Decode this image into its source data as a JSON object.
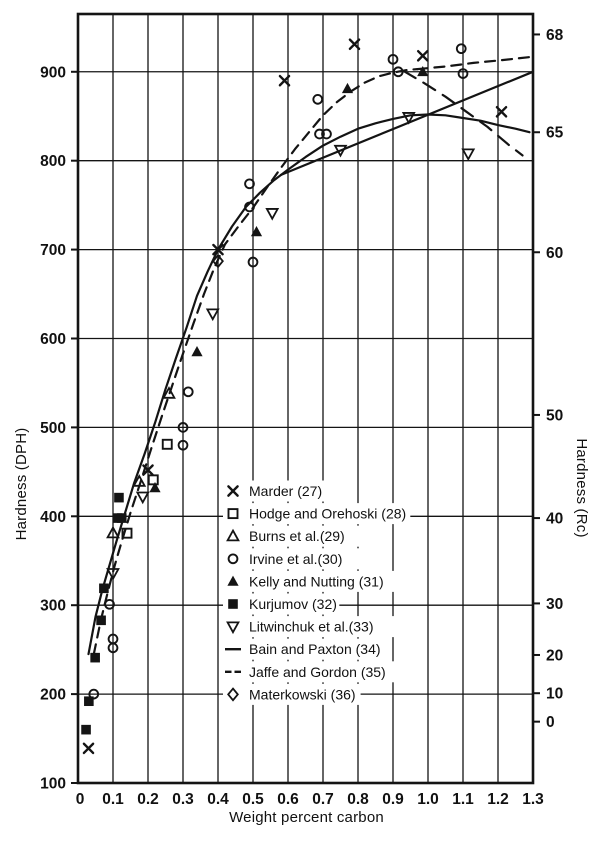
{
  "figure": {
    "background": "#ffffff",
    "ink": "#141414",
    "description": "Hardness of martensite versus carbon content, scatter plot with two fitted curves"
  },
  "chart_data": {
    "type": "scatter",
    "title": "",
    "xlabel": "Weight percent carbon",
    "ylabel_left": "Hardness (DPH)",
    "ylabel_right": "Hardness (Rc)",
    "xlim": [
      0,
      1.3
    ],
    "ylim": [
      100,
      965
    ],
    "grid": true,
    "x_ticks": [
      "0",
      "0.1",
      "0.2",
      "0.3",
      "0.4",
      "0.5",
      "0.6",
      "0.7",
      "0.8",
      "0.9",
      "1.0",
      "1.1",
      "1.2",
      "1.3"
    ],
    "x_tick_values": [
      0,
      0.1,
      0.2,
      0.3,
      0.4,
      0.5,
      0.6,
      0.7,
      0.8,
      0.9,
      1.0,
      1.1,
      1.2,
      1.3
    ],
    "y_ticks_left": [
      100,
      200,
      300,
      400,
      500,
      600,
      700,
      800,
      900
    ],
    "y_ticks_right": [
      {
        "label": "68",
        "dph": 942
      },
      {
        "label": "65",
        "dph": 832
      },
      {
        "label": "60",
        "dph": 697
      },
      {
        "label": "50",
        "dph": 514
      },
      {
        "label": "40",
        "dph": 398
      },
      {
        "label": "30",
        "dph": 302
      },
      {
        "label": "20",
        "dph": 244
      },
      {
        "label": "10",
        "dph": 201
      },
      {
        "label": "0",
        "dph": 169
      }
    ],
    "series": [
      {
        "name": "Marder (27)",
        "marker": "cross",
        "points": [
          [
            0.03,
            139
          ],
          [
            0.2,
            452
          ],
          [
            0.4,
            700
          ],
          [
            0.59,
            890
          ],
          [
            0.79,
            931
          ],
          [
            0.985,
            918
          ],
          [
            1.21,
            855
          ]
        ]
      },
      {
        "name": "Hodge and Orehoski (28)",
        "marker": "square-open",
        "points": [
          [
            0.14,
            381
          ],
          [
            0.215,
            441
          ],
          [
            0.255,
            481
          ]
        ]
      },
      {
        "name": "Burns et al.(29)",
        "marker": "triangle-open",
        "points": [
          [
            0.1,
            381
          ],
          [
            0.175,
            439
          ],
          [
            0.26,
            538
          ]
        ]
      },
      {
        "name": "Irvine et al.(30)",
        "marker": "circle-open",
        "points": [
          [
            0.045,
            200
          ],
          [
            0.09,
            301
          ],
          [
            0.1,
            262
          ],
          [
            0.1,
            252
          ],
          [
            0.3,
            500
          ],
          [
            0.3,
            480
          ],
          [
            0.315,
            540
          ],
          [
            0.49,
            774
          ],
          [
            0.49,
            748
          ],
          [
            0.5,
            686
          ],
          [
            0.685,
            869
          ],
          [
            0.69,
            830
          ],
          [
            0.71,
            830
          ],
          [
            0.9,
            914
          ],
          [
            0.915,
            900
          ],
          [
            1.095,
            926
          ],
          [
            1.1,
            898
          ]
        ]
      },
      {
        "name": "Kelly and Nutting (31)",
        "marker": "triangle-filled",
        "points": [
          [
            0.22,
            432
          ],
          [
            0.34,
            585
          ],
          [
            0.51,
            720
          ],
          [
            0.77,
            881
          ],
          [
            0.985,
            900
          ]
        ]
      },
      {
        "name": "Kurjumov (32)",
        "marker": "square-filled",
        "points": [
          [
            0.023,
            160
          ],
          [
            0.031,
            192
          ],
          [
            0.049,
            241
          ],
          [
            0.066,
            283
          ],
          [
            0.074,
            319
          ],
          [
            0.113,
            398
          ],
          [
            0.125,
            398
          ],
          [
            0.117,
            421
          ]
        ]
      },
      {
        "name": "Litwinchuk et al.(33)",
        "marker": "triangle-down-open",
        "points": [
          [
            0.1,
            336
          ],
          [
            0.185,
            422
          ],
          [
            0.385,
            628
          ],
          [
            0.555,
            741
          ],
          [
            0.75,
            812
          ],
          [
            0.945,
            849
          ],
          [
            1.115,
            808
          ]
        ]
      },
      {
        "name": "Materkowski (36)",
        "marker": "diamond-open",
        "points": [
          [
            0.4,
            687
          ]
        ]
      }
    ],
    "curves": [
      {
        "name": "Bain and Paxton (34)",
        "style": "solid",
        "branches": [
          [
            [
              0.03,
              245
            ],
            [
              0.05,
              287
            ],
            [
              0.07,
              318
            ],
            [
              0.09,
              345
            ],
            [
              0.11,
              372
            ],
            [
              0.13,
              398
            ],
            [
              0.16,
              437
            ],
            [
              0.19,
              470
            ],
            [
              0.22,
              505
            ],
            [
              0.25,
              543
            ],
            [
              0.28,
              578
            ],
            [
              0.31,
              612
            ],
            [
              0.34,
              648
            ],
            [
              0.37,
              675
            ],
            [
              0.4,
              700
            ],
            [
              0.44,
              726
            ],
            [
              0.48,
              748
            ],
            [
              0.52,
              764
            ],
            [
              0.56,
              778
            ],
            [
              0.6,
              790
            ],
            [
              0.65,
              804
            ],
            [
              0.7,
              817
            ],
            [
              0.75,
              827
            ],
            [
              0.8,
              836
            ],
            [
              0.85,
              842
            ],
            [
              0.9,
              847
            ],
            [
              0.95,
              851
            ],
            [
              1.0,
              852
            ],
            [
              1.05,
              851
            ],
            [
              1.1,
              848
            ],
            [
              1.15,
              845
            ],
            [
              1.2,
              840
            ],
            [
              1.25,
              836
            ],
            [
              1.29,
              832
            ]
          ],
          [
            [
              0.58,
              784
            ],
            [
              1.3,
              900
            ]
          ]
        ]
      },
      {
        "name": "Jaffe and Gordon (35)",
        "style": "dashed",
        "branches": [
          [
            [
              0.045,
              245
            ],
            [
              0.065,
              283
            ],
            [
              0.085,
              315
            ],
            [
              0.105,
              345
            ],
            [
              0.125,
              372
            ],
            [
              0.15,
              404
            ],
            [
              0.18,
              440
            ],
            [
              0.21,
              477
            ],
            [
              0.24,
              513
            ],
            [
              0.27,
              548
            ],
            [
              0.3,
              583
            ],
            [
              0.33,
              617
            ],
            [
              0.36,
              650
            ],
            [
              0.39,
              680
            ],
            [
              0.42,
              706
            ],
            [
              0.46,
              727
            ],
            [
              0.5,
              747
            ],
            [
              0.54,
              770
            ],
            [
              0.58,
              792
            ],
            [
              0.62,
              813
            ],
            [
              0.66,
              832
            ],
            [
              0.7,
              851
            ],
            [
              0.74,
              866
            ],
            [
              0.78,
              878
            ],
            [
              0.82,
              888
            ],
            [
              0.86,
              895
            ],
            [
              0.9,
              899
            ],
            [
              0.94,
              902
            ],
            [
              0.97,
              903
            ]
          ],
          [
            [
              0.97,
              903
            ],
            [
              1.05,
              906
            ],
            [
              1.13,
              910
            ],
            [
              1.21,
              913
            ],
            [
              1.3,
              917
            ]
          ],
          [
            [
              0.93,
              901
            ],
            [
              0.99,
              887
            ],
            [
              1.05,
              872
            ],
            [
              1.11,
              855
            ],
            [
              1.17,
              838
            ],
            [
              1.23,
              818
            ],
            [
              1.27,
              806
            ]
          ]
        ]
      }
    ],
    "legend": [
      {
        "marker": "cross",
        "label": "Marder (27)"
      },
      {
        "marker": "square-open",
        "label": "Hodge and Orehoski (28)"
      },
      {
        "marker": "triangle-open",
        "label": "Burns et al.(29)"
      },
      {
        "marker": "circle-open",
        "label": "Irvine et al.(30)"
      },
      {
        "marker": "triangle-filled",
        "label": "Kelly and Nutting (31)"
      },
      {
        "marker": "square-filled",
        "label": "Kurjumov (32)"
      },
      {
        "marker": "triangle-down-open",
        "label": "Litwinchuk et al.(33)"
      },
      {
        "marker": "dash-solid",
        "label": "Bain and Paxton (34)"
      },
      {
        "marker": "dash-dashed",
        "label": "Jaffe and Gordon (35)"
      },
      {
        "marker": "diamond-open",
        "label": "Materkowski (36)"
      }
    ],
    "legend_position": "inside-center-right"
  }
}
